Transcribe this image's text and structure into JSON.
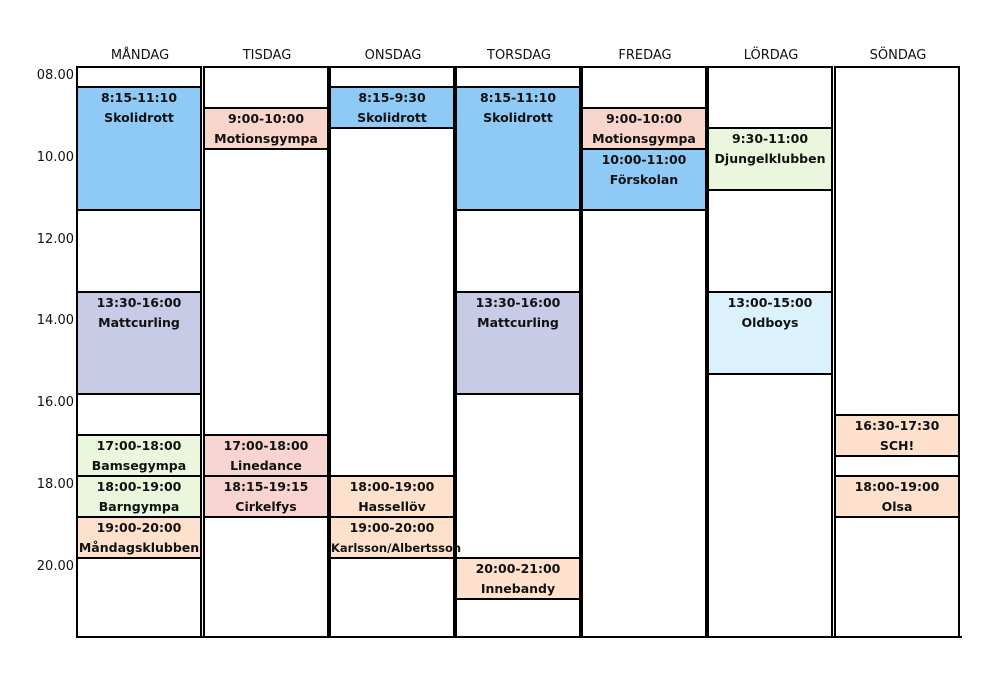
{
  "days": [
    {
      "label": "MÅNDAG",
      "events": [
        {
          "time": "8:15-11:10",
          "name": "Skolidrott",
          "color": "#8ecaf5"
        },
        {
          "time": "13:30-16:00",
          "name": "Mattcurling",
          "color": "#c8cbe5"
        },
        {
          "time": "17:00-18:00",
          "name": "Bamsegympa",
          "color": "#ebf7dc"
        },
        {
          "time": "18:00-19:00",
          "name": "Barngympa",
          "color": "#ebf7dc"
        },
        {
          "time": "19:00-20:00",
          "name": "Måndagsklubben",
          "color": "#fde1cd"
        }
      ]
    },
    {
      "label": "TISDAG",
      "events": [
        {
          "time": "9:00-10:00",
          "name": "Motionsgympa",
          "color": "#f9d6cc"
        },
        {
          "time": "17:00-18:00",
          "name": "Linedance",
          "color": "#f8d4d0"
        },
        {
          "time": "18:15-19:15",
          "name": "Cirkelfys",
          "color": "#f8d4d0"
        }
      ]
    },
    {
      "label": "ONSDAG",
      "events": [
        {
          "time": "8:15-9:30",
          "name": "Skolidrott",
          "color": "#8ecaf5"
        },
        {
          "time": "18:00-19:00",
          "name": "Hassellöv",
          "color": "#fde1cd"
        },
        {
          "time": "19:00-20:00",
          "name": "Karlsson/Albertsson",
          "color": "#fde1cd"
        }
      ]
    },
    {
      "label": "TORSDAG",
      "events": [
        {
          "time": "8:15-11:10",
          "name": "Skolidrott",
          "color": "#8ecaf5"
        },
        {
          "time": "13:30-16:00",
          "name": "Mattcurling",
          "color": "#c8cbe5"
        },
        {
          "time": "20:00-21:00",
          "name": "Innebandy",
          "color": "#fde1cd"
        }
      ]
    },
    {
      "label": "FREDAG",
      "events": [
        {
          "time": "9:00-10:00",
          "name": "Motionsgympa",
          "color": "#f9d6cc"
        },
        {
          "time": "10:00-11:00",
          "name": "Förskolan",
          "color": "#8ecaf5"
        }
      ]
    },
    {
      "label": "LÖRDAG",
      "events": [
        {
          "time": "9:30-11:00",
          "name": "Djungelklubben",
          "color": "#ebf7dc"
        },
        {
          "time": "13:00-15:00",
          "name": "Oldboys",
          "color": "#dbf2fc"
        }
      ]
    },
    {
      "label": "SÖNDAG",
      "events": [
        {
          "time": "16:30-17:30",
          "name": "SCH!",
          "color": "#fde1cd"
        },
        {
          "time": "18:00-19:00",
          "name": "Olsa",
          "color": "#fde1cd"
        }
      ]
    }
  ],
  "time_labels": [
    "08.00",
    "10.00",
    "12.00",
    "14.00",
    "16.00",
    "18.00",
    "20.00"
  ]
}
